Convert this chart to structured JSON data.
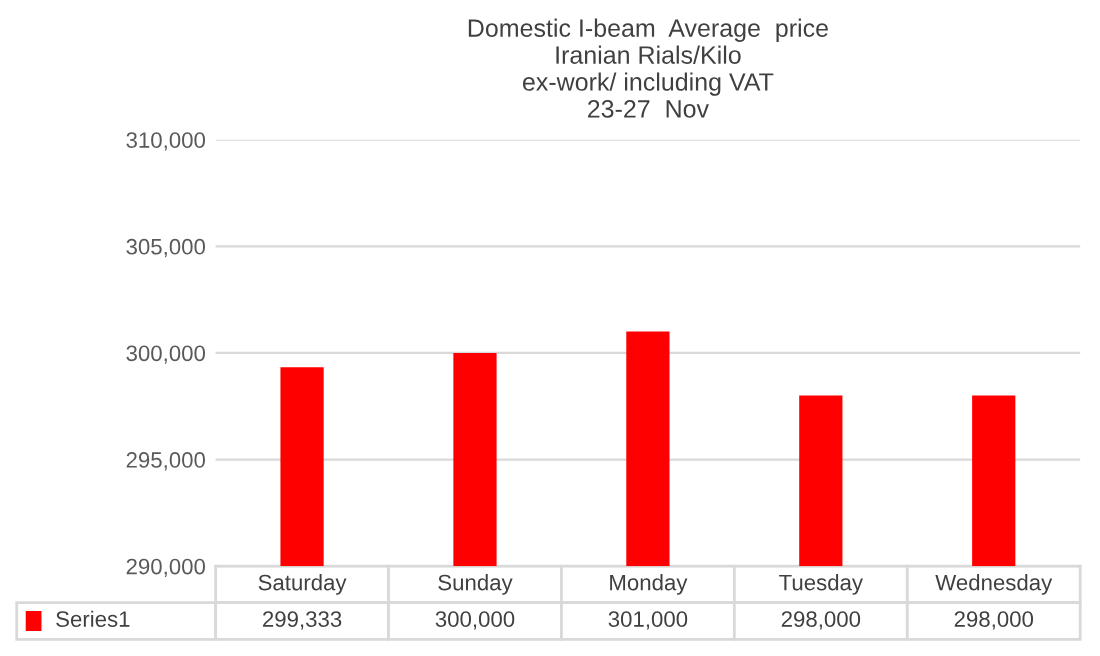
{
  "chart_data": {
    "type": "bar",
    "title": "Domestic I-beam  Average  price\nIranian Rials/Kilo\nex-work/ including VAT\n23-27  Nov",
    "categories": [
      "Saturday",
      "Sunday",
      "Monday",
      "Tuesday",
      "Wednesday"
    ],
    "series": [
      {
        "name": "Series1",
        "color": "#ff0000",
        "values": [
          299333,
          300000,
          301000,
          298000,
          298000
        ],
        "value_labels": [
          "299,333",
          "300,000",
          "301,000",
          "298,000",
          "298,000"
        ]
      }
    ],
    "ylim": [
      290000,
      310000
    ],
    "yticks": [
      {
        "value": 290000,
        "label": "290,000"
      },
      {
        "value": 295000,
        "label": "295,000"
      },
      {
        "value": 300000,
        "label": "300,000"
      },
      {
        "value": 305000,
        "label": "305,000"
      },
      {
        "value": 310000,
        "label": "310,000"
      }
    ],
    "grid": "y"
  }
}
